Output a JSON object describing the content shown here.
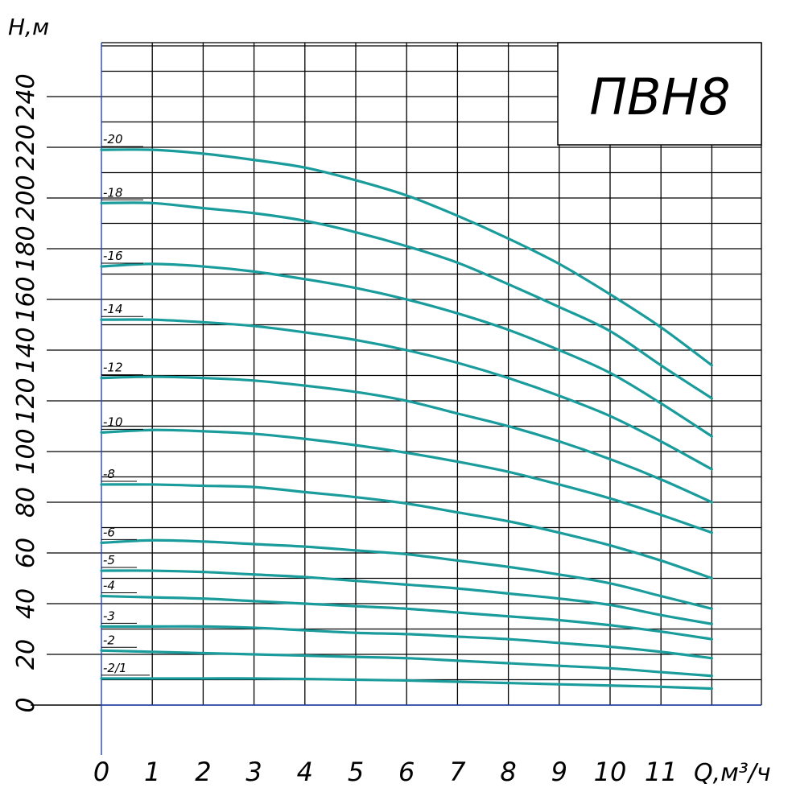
{
  "chart_data": {
    "type": "line",
    "title": "ПВН8",
    "ylabel": "H,м",
    "xlabel": "Q,м³/ч",
    "xlim": [
      0,
      12
    ],
    "ylim": [
      0,
      240
    ],
    "x_ticks": [
      "0",
      "1",
      "2",
      "3",
      "4",
      "5",
      "6",
      "7",
      "8",
      "9",
      "10",
      "11"
    ],
    "y_ticks": [
      "0",
      "20",
      "40",
      "60",
      "80",
      "100",
      "120",
      "140",
      "160",
      "180",
      "200",
      "220",
      "240"
    ],
    "grid": true,
    "line_color": "#1a9c9c",
    "series": [
      {
        "name": "-20",
        "x": [
          0,
          1,
          2,
          3,
          4,
          5,
          6,
          7,
          8,
          9,
          10,
          11,
          12
        ],
        "y": [
          219,
          219,
          217.5,
          215,
          212,
          207,
          201,
          193,
          184,
          174,
          162,
          149,
          134
        ]
      },
      {
        "name": "-18",
        "x": [
          0,
          1,
          2,
          3,
          4,
          5,
          6,
          7,
          8,
          9,
          10,
          11,
          12
        ],
        "y": [
          198,
          198,
          196,
          194,
          191,
          186.5,
          181,
          174.5,
          166,
          157,
          147.5,
          134,
          121
        ]
      },
      {
        "name": "-16",
        "x": [
          0,
          1,
          2,
          3,
          4,
          5,
          6,
          7,
          8,
          9,
          10,
          11,
          12
        ],
        "y": [
          173,
          174,
          173,
          171,
          168,
          164.5,
          160,
          154.5,
          148,
          140,
          131,
          119,
          106
        ]
      },
      {
        "name": "-14",
        "x": [
          0,
          1,
          2,
          3,
          4,
          5,
          6,
          7,
          8,
          9,
          10,
          11,
          12
        ],
        "y": [
          152,
          152,
          151,
          149.5,
          147,
          144,
          140,
          135,
          129,
          122,
          114,
          104,
          93
        ]
      },
      {
        "name": "-12",
        "x": [
          0,
          1,
          2,
          3,
          4,
          5,
          6,
          7,
          8,
          9,
          10,
          11,
          12
        ],
        "y": [
          129,
          129.5,
          129,
          128,
          126,
          123.5,
          120,
          115,
          110,
          104,
          97,
          89,
          80
        ]
      },
      {
        "name": "-10",
        "x": [
          0,
          1,
          2,
          3,
          4,
          5,
          6,
          7,
          8,
          9,
          10,
          11,
          12
        ],
        "y": [
          107.5,
          108.5,
          108,
          107,
          105,
          102.5,
          99.5,
          96,
          92,
          87,
          81.5,
          75,
          68
        ]
      },
      {
        "name": "-8",
        "x": [
          0,
          1,
          2,
          3,
          4,
          5,
          6,
          7,
          8,
          9,
          10,
          11,
          12
        ],
        "y": [
          87,
          87,
          86.5,
          86,
          84,
          82,
          79.5,
          76,
          72.5,
          68,
          63,
          57,
          50
        ]
      },
      {
        "name": "-6",
        "x": [
          0,
          1,
          2,
          3,
          4,
          5,
          6,
          7,
          8,
          9,
          10,
          11,
          12
        ],
        "y": [
          64,
          65,
          64.5,
          63.5,
          62.5,
          61,
          59.5,
          57,
          54.5,
          51.5,
          48,
          43,
          38
        ]
      },
      {
        "name": "-5",
        "x": [
          0,
          1,
          2,
          3,
          4,
          5,
          6,
          7,
          8,
          9,
          10,
          11,
          12
        ],
        "y": [
          53,
          53,
          52.5,
          51.5,
          50.5,
          49,
          47.5,
          46,
          44,
          42,
          39.5,
          35.5,
          32
        ]
      },
      {
        "name": "-4",
        "x": [
          0,
          1,
          2,
          3,
          4,
          5,
          6,
          7,
          8,
          9,
          10,
          11,
          12
        ],
        "y": [
          43,
          42.5,
          42,
          41,
          40,
          39,
          38,
          36.5,
          35,
          33.5,
          31.5,
          29,
          26
        ]
      },
      {
        "name": "-3",
        "x": [
          0,
          1,
          2,
          3,
          4,
          5,
          6,
          7,
          8,
          9,
          10,
          11,
          12
        ],
        "y": [
          31,
          31,
          31,
          30.5,
          29.5,
          28.5,
          28,
          27,
          26,
          24.5,
          23,
          21,
          18.5
        ]
      },
      {
        "name": "-2",
        "x": [
          0,
          1,
          2,
          3,
          4,
          5,
          6,
          7,
          8,
          9,
          10,
          11,
          12
        ],
        "y": [
          21.5,
          21,
          20.5,
          20,
          19.5,
          19,
          18.5,
          17.5,
          16.5,
          15.5,
          14.5,
          13,
          11.5
        ]
      },
      {
        "name": "-2/1",
        "x": [
          0,
          1,
          2,
          3,
          4,
          5,
          6,
          7,
          8,
          9,
          10,
          11,
          12
        ],
        "y": [
          10.5,
          10.5,
          10.5,
          10.5,
          10.3,
          10,
          9.7,
          9.2,
          8.7,
          8.2,
          7.7,
          7.2,
          6.5
        ]
      }
    ]
  }
}
